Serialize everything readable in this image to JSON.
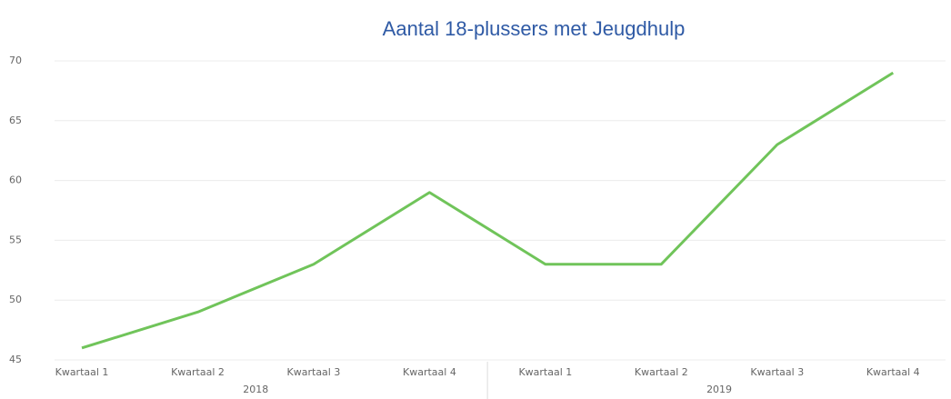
{
  "chart_data": {
    "type": "line",
    "title": "Aantal 18-plussers met Jeugdhulp",
    "categories": [
      "Kwartaal 1",
      "Kwartaal 2",
      "Kwartaal 3",
      "Kwartaal 4",
      "Kwartaal 1",
      "Kwartaal 2",
      "Kwartaal 3",
      "Kwartaal 4"
    ],
    "groups": [
      "2018",
      "2019"
    ],
    "series": [
      {
        "name": "Aantal",
        "color": "#70c45a",
        "values": [
          46,
          49,
          53,
          59,
          53,
          53,
          63,
          69
        ]
      }
    ],
    "ylim": [
      45,
      70
    ],
    "yticks": [
      45,
      50,
      55,
      60,
      65,
      70
    ],
    "grid": true
  }
}
